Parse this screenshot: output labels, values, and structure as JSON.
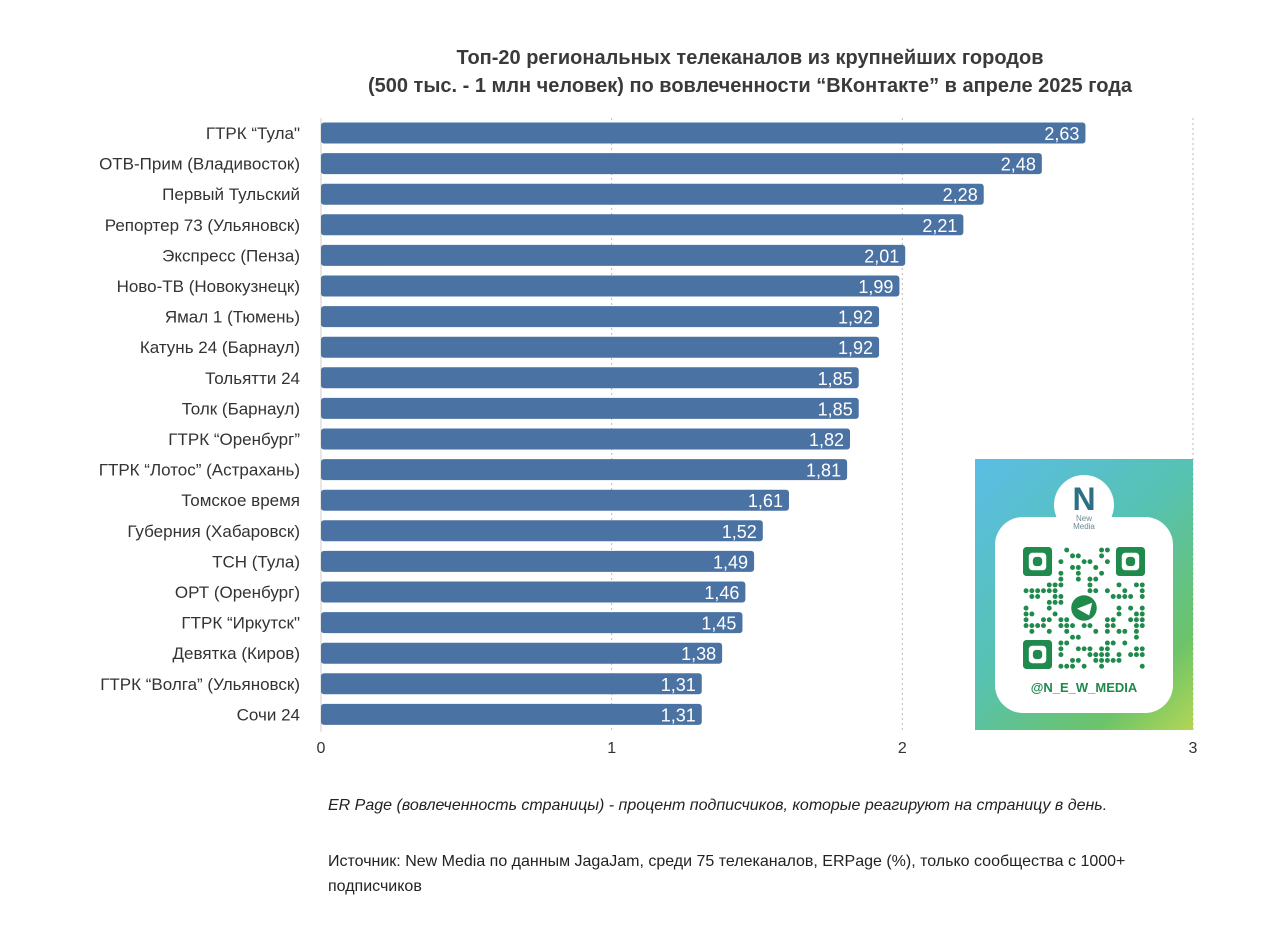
{
  "chart_data": {
    "type": "bar",
    "orientation": "horizontal",
    "title": "Топ-20 региональных телеканалов из крупнейших городов",
    "subtitle": "(500 тыс. - 1 млн человек) по вовлеченности “ВКонтакте” в апреле 2025 года",
    "categories": [
      "ГТРК “Тула\"",
      "ОТВ-Прим (Владивосток)",
      "Первый Тульский",
      "Репортер 73 (Ульяновск)",
      "Экспресс (Пенза)",
      "Ново-ТВ (Новокузнецк)",
      "Ямал 1 (Тюмень)",
      "Катунь 24 (Барнаул)",
      "Тольятти 24",
      "Толк (Барнаул)",
      "ГТРК “Оренбург”",
      "ГТРК “Лотос” (Астрахань)",
      "Томское время",
      "Губерния (Хабаровск)",
      "ТСН (Тула)",
      "ОРТ (Оренбург)",
      "ГТРК “Иркутск\"",
      "Девятка (Киров)",
      "ГТРК “Волга” (Ульяновск)",
      "Сочи 24"
    ],
    "values": [
      2.63,
      2.48,
      2.28,
      2.21,
      2.01,
      1.99,
      1.92,
      1.92,
      1.85,
      1.85,
      1.82,
      1.81,
      1.61,
      1.52,
      1.49,
      1.46,
      1.45,
      1.38,
      1.31,
      1.31
    ],
    "value_labels": [
      "2,63",
      "2,48",
      "2,28",
      "2,21",
      "2,01",
      "1,99",
      "1,92",
      "1,92",
      "1,85",
      "1,85",
      "1,82",
      "1,81",
      "1,61",
      "1,52",
      "1,49",
      "1,46",
      "1,45",
      "1,38",
      "1,31",
      "1,31"
    ],
    "xlim": [
      0,
      3
    ],
    "xticks": [
      "0",
      "1",
      "2",
      "3"
    ],
    "grid": "vertical dotted",
    "bar_color": "#4a72a3",
    "grid_color": "#bbbbbb"
  },
  "note": "ER Page (вовлеченность страницы) - процент подписчиков, которые реагируют на страницу в день.",
  "source": "Источник: New Media по данным JagaJam, среди 75 телеканалов, ERPage (%), только сообщества с 1000+ подписчиков",
  "promo": {
    "logo_letter": "N",
    "logo_text_line1": "New",
    "logo_text_line2": "Media",
    "handle": "@N_E_W_MEDIA",
    "accent": "#1f8a4c",
    "icon": "telegram-icon"
  }
}
